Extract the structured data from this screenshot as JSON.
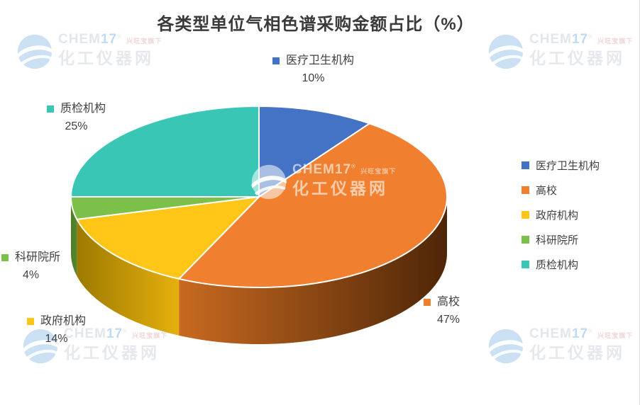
{
  "title": "各类型单位气相色谱采购金额占比（%）",
  "chart_data": {
    "type": "pie",
    "style": "pie-3d",
    "title": "各类型单位气相色谱采购金额占比（%）",
    "categories": [
      "医疗卫生机构",
      "高校",
      "政府机构",
      "科研院所",
      "质检机构"
    ],
    "values": [
      10,
      47,
      14,
      4,
      25
    ],
    "unit": "%",
    "start_angle_deg": 0,
    "direction": "clockwise",
    "legend_position": "right",
    "data_label_format": "name + percent",
    "colors": [
      "#4472C4",
      "#F0802F",
      "#FFC517",
      "#7CC04A",
      "#3AC6B5"
    ],
    "side_colors": [
      [
        "#2E4F8E",
        "#2E4F8E"
      ],
      [
        "#C86A20",
        "#4E2607"
      ],
      [
        "#9C7A00",
        "#E6B00E"
      ],
      [
        "#4E7D28",
        "#55862E"
      ],
      [
        "#2A9486",
        "#2A9486"
      ]
    ]
  },
  "data_labels": [
    {
      "name": "医疗卫生机构",
      "pct": "10%"
    },
    {
      "name": "高校",
      "pct": "47%"
    },
    {
      "name": "政府机构",
      "pct": "14%"
    },
    {
      "name": "科研院所",
      "pct": "4%"
    },
    {
      "name": "质检机构",
      "pct": "25%"
    }
  ],
  "legend": {
    "items": [
      "医疗卫生机构",
      "高校",
      "政府机构",
      "科研院所",
      "质检机构"
    ]
  },
  "watermark": {
    "brand_prefix": "CHEM",
    "brand_suffix": "17",
    "reg": "®",
    "tagline": "兴旺宝旗下",
    "site": "化工仪器网"
  }
}
